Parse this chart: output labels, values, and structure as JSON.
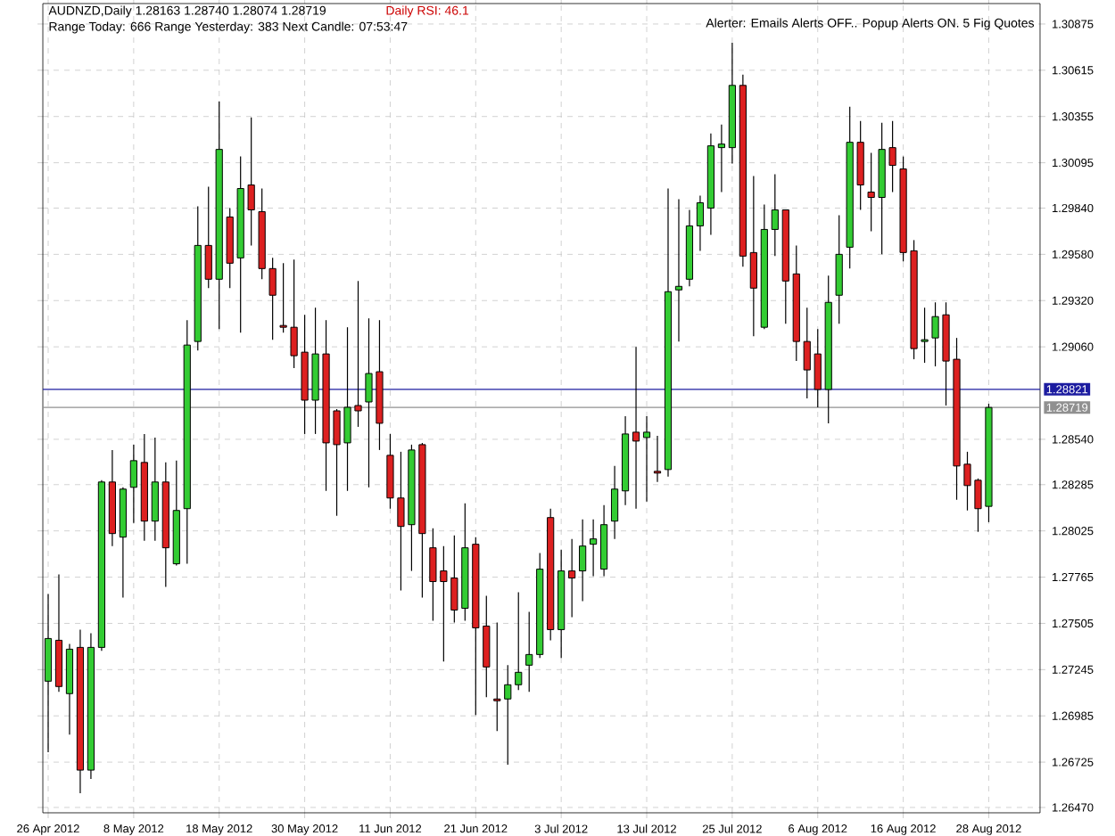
{
  "chart_data": {
    "type": "candlestick",
    "title": "AUDNZD,Daily  1.28163 1.28740 1.28074 1.28719",
    "subtitle": "Range Today: 666   Range Yesterday: 383   Next Candle: 07:53:47",
    "annotations": [
      "Daily RSI: 46.1",
      "Alerter:  Emails Alerts OFF.. Popup Alerts ON.  5 Fig Quotes"
    ],
    "categories": [
      "26 Apr 2012",
      null,
      null,
      null,
      null,
      null,
      null,
      null,
      "8 May 2012",
      null,
      null,
      null,
      null,
      null,
      null,
      null,
      "18 May 2012",
      null,
      null,
      null,
      null,
      null,
      null,
      null,
      "30 May 2012",
      null,
      null,
      null,
      null,
      null,
      null,
      null,
      "11 Jun 2012",
      null,
      null,
      null,
      null,
      null,
      null,
      null,
      "21 Jun 2012",
      null,
      null,
      null,
      null,
      null,
      null,
      null,
      "3 Jul 2012",
      null,
      null,
      null,
      null,
      null,
      null,
      null,
      "13 Jul 2012",
      null,
      null,
      null,
      null,
      null,
      null,
      null,
      "25 Jul 2012",
      null,
      null,
      null,
      null,
      null,
      null,
      null,
      "6 Aug 2012",
      null,
      null,
      null,
      null,
      null,
      null,
      null,
      "16 Aug 2012",
      null,
      null,
      null,
      null,
      null,
      null,
      null,
      "28 Aug 2012"
    ],
    "ohlc": [
      [
        1.2718,
        1.2767,
        1.2678,
        1.2742
      ],
      [
        1.2741,
        1.2778,
        1.2712,
        1.2715
      ],
      [
        1.2711,
        1.2739,
        1.2688,
        1.2736
      ],
      [
        1.2737,
        1.2747,
        1.2655,
        1.2668
      ],
      [
        1.2668,
        1.2745,
        1.2663,
        1.2737
      ],
      [
        1.2737,
        1.2831,
        1.2735,
        1.283
      ],
      [
        1.283,
        1.2848,
        1.2794,
        1.2801
      ],
      [
        1.2799,
        1.2827,
        1.2765,
        1.2826
      ],
      [
        1.2827,
        1.2851,
        1.2807,
        1.2842
      ],
      [
        1.2841,
        1.2857,
        1.2797,
        1.2808
      ],
      [
        1.2808,
        1.2855,
        1.2797,
        1.283
      ],
      [
        1.283,
        1.2841,
        1.2771,
        1.2793
      ],
      [
        1.2784,
        1.2842,
        1.2783,
        1.2814
      ],
      [
        1.2815,
        1.2921,
        1.2784,
        1.2907
      ],
      [
        1.2909,
        1.2985,
        1.2904,
        1.2963
      ],
      [
        1.2963,
        1.2996,
        1.2939,
        1.2944
      ],
      [
        1.2944,
        1.3044,
        1.2916,
        1.3017
      ],
      [
        1.2979,
        1.2984,
        1.2939,
        1.2953
      ],
      [
        1.2956,
        1.3013,
        1.2914,
        1.2995
      ],
      [
        1.2997,
        1.3035,
        1.2963,
        1.2983
      ],
      [
        1.2982,
        1.2995,
        1.2944,
        1.295
      ],
      [
        1.295,
        1.2956,
        1.291,
        1.2935
      ],
      [
        1.2918,
        1.2953,
        1.2914,
        1.2917
      ],
      [
        1.2917,
        1.2955,
        1.2894,
        1.2901
      ],
      [
        1.2903,
        1.2924,
        1.2857,
        1.2876
      ],
      [
        1.2876,
        1.2928,
        1.2857,
        1.2902
      ],
      [
        1.2902,
        1.2921,
        1.2825,
        1.2852
      ],
      [
        1.287,
        1.2871,
        1.2811,
        1.2851
      ],
      [
        1.2852,
        1.2917,
        1.2825,
        1.2872
      ],
      [
        1.2873,
        1.2943,
        1.2861,
        1.287
      ],
      [
        1.2875,
        1.2922,
        1.2827,
        1.2891
      ],
      [
        1.2892,
        1.2921,
        1.2848,
        1.2863
      ],
      [
        1.2845,
        1.2857,
        1.2815,
        1.2821
      ],
      [
        1.2821,
        1.2847,
        1.2769,
        1.2805
      ],
      [
        1.2806,
        1.2851,
        1.278,
        1.2848
      ],
      [
        1.2851,
        1.2852,
        1.2765,
        1.2801
      ],
      [
        1.2793,
        1.2804,
        1.2752,
        1.2774
      ],
      [
        1.278,
        1.2794,
        1.2729,
        1.2774
      ],
      [
        1.2776,
        1.28,
        1.2751,
        1.2758
      ],
      [
        1.2759,
        1.2818,
        1.2752,
        1.2793
      ],
      [
        1.2795,
        1.2799,
        1.2699,
        1.2748
      ],
      [
        1.2749,
        1.2766,
        1.2709,
        1.2726
      ],
      [
        1.2708,
        1.2751,
        1.269,
        1.2707
      ],
      [
        1.2708,
        1.2727,
        1.2671,
        1.2716
      ],
      [
        1.2716,
        1.2768,
        1.2713,
        1.2723
      ],
      [
        1.2727,
        1.2757,
        1.2712,
        1.2733
      ],
      [
        1.2733,
        1.279,
        1.2731,
        1.2781
      ],
      [
        1.281,
        1.2815,
        1.2741,
        1.2747
      ],
      [
        1.2747,
        1.2792,
        1.2731,
        1.278
      ],
      [
        1.278,
        1.2798,
        1.2754,
        1.2776
      ],
      [
        1.278,
        1.2809,
        1.2763,
        1.2794
      ],
      [
        1.2795,
        1.2809,
        1.2777,
        1.2798
      ],
      [
        1.2781,
        1.2817,
        1.2777,
        1.2806
      ],
      [
        1.2808,
        1.2839,
        1.2798,
        1.2826
      ],
      [
        1.2825,
        1.2867,
        1.2817,
        1.2857
      ],
      [
        1.2858,
        1.2906,
        1.2815,
        1.2853
      ],
      [
        1.2855,
        1.2867,
        1.2819,
        1.2858
      ],
      [
        1.2836,
        1.2856,
        1.283,
        1.2835
      ],
      [
        1.2837,
        1.2995,
        1.2833,
        1.2937
      ],
      [
        1.2938,
        1.2989,
        1.2909,
        1.294
      ],
      [
        1.2944,
        1.2983,
        1.294,
        1.2974
      ],
      [
        1.2974,
        1.2991,
        1.296,
        1.2987
      ],
      [
        1.2984,
        1.3026,
        1.2969,
        1.3019
      ],
      [
        1.3018,
        1.3031,
        1.2993,
        1.302
      ],
      [
        1.3018,
        1.3077,
        1.3009,
        1.3053
      ],
      [
        1.3053,
        1.3059,
        1.2951,
        1.2957
      ],
      [
        1.2959,
        1.3002,
        1.2912,
        1.2939
      ],
      [
        1.2917,
        1.2986,
        1.2916,
        1.2972
      ],
      [
        1.2972,
        1.3003,
        1.2957,
        1.2983
      ],
      [
        1.2983,
        1.2983,
        1.2919,
        1.2943
      ],
      [
        1.2947,
        1.2963,
        1.2898,
        1.2909
      ],
      [
        1.2909,
        1.2928,
        1.2877,
        1.2893
      ],
      [
        1.2902,
        1.2916,
        1.2872,
        1.2882
      ],
      [
        1.2882,
        1.2946,
        1.2863,
        1.2931
      ],
      [
        1.2935,
        1.298,
        1.2919,
        1.2958
      ],
      [
        1.2962,
        1.3041,
        1.295,
        1.3021
      ],
      [
        1.3021,
        1.3033,
        1.2983,
        1.2997
      ],
      [
        1.2993,
        1.3015,
        1.2971,
        1.299
      ],
      [
        1.299,
        1.3032,
        1.2958,
        1.3017
      ],
      [
        1.3018,
        1.3033,
        1.2993,
        1.3008
      ],
      [
        1.3006,
        1.3013,
        1.2954,
        1.2959
      ],
      [
        1.296,
        1.2966,
        1.2899,
        1.2905
      ],
      [
        1.2909,
        1.2928,
        1.2897,
        1.291
      ],
      [
        1.2911,
        1.2931,
        1.2895,
        1.2923
      ],
      [
        1.2924,
        1.2931,
        1.2873,
        1.2898
      ],
      [
        1.2899,
        1.2911,
        1.282,
        1.2839
      ],
      [
        1.284,
        1.2847,
        1.2814,
        1.2828
      ],
      [
        1.2831,
        1.2832,
        1.2802,
        1.2815
      ],
      [
        1.28163,
        1.2874,
        1.28074,
        1.28719
      ]
    ],
    "colors": [
      "#33cc33",
      "#dd2020",
      "#33cc33",
      "#dd2020",
      "#33cc33",
      "#33cc33",
      "#dd2020",
      "#33cc33",
      "#33cc33",
      "#dd2020",
      "#33cc33",
      "#dd2020",
      "#33cc33",
      "#33cc33",
      "#33cc33",
      "#dd2020",
      "#33cc33",
      "#dd2020",
      "#33cc33",
      "#dd2020",
      "#dd2020",
      "#dd2020",
      "#dd2020",
      "#dd2020",
      "#dd2020",
      "#33cc33",
      "#dd2020",
      "#dd2020",
      "#33cc33",
      "#dd2020",
      "#33cc33",
      "#dd2020",
      "#dd2020",
      "#dd2020",
      "#33cc33",
      "#dd2020",
      "#dd2020",
      "#dd2020",
      "#dd2020",
      "#33cc33",
      "#dd2020",
      "#dd2020",
      "#dd2020",
      "#33cc33",
      "#33cc33",
      "#33cc33",
      "#33cc33",
      "#dd2020",
      "#33cc33",
      "#dd2020",
      "#33cc33",
      "#33cc33",
      "#33cc33",
      "#33cc33",
      "#33cc33",
      "#dd2020",
      "#33cc33",
      "#dd2020",
      "#33cc33",
      "#33cc33",
      "#33cc33",
      "#33cc33",
      "#33cc33",
      "#33cc33",
      "#33cc33",
      "#dd2020",
      "#dd2020",
      "#33cc33",
      "#33cc33",
      "#dd2020",
      "#dd2020",
      "#dd2020",
      "#dd2020",
      "#33cc33",
      "#33cc33",
      "#33cc33",
      "#dd2020",
      "#dd2020",
      "#33cc33",
      "#dd2020",
      "#dd2020",
      "#dd2020",
      "#33cc33",
      "#33cc33",
      "#dd2020",
      "#dd2020",
      "#dd2020",
      "#dd2020",
      "#33cc33"
    ],
    "ylim": [
      1.2644,
      1.3099
    ],
    "yticks": [
      {
        "value": 1.30875,
        "label": "1.30875"
      },
      {
        "value": 1.30615,
        "label": "1.30615"
      },
      {
        "value": 1.30355,
        "label": "1.30355"
      },
      {
        "value": 1.30095,
        "label": "1.30095"
      },
      {
        "value": 1.2984,
        "label": "1.29840"
      },
      {
        "value": 1.2958,
        "label": "1.29580"
      },
      {
        "value": 1.2932,
        "label": "1.29320"
      },
      {
        "value": 1.2906,
        "label": "1.29060"
      },
      {
        "value": 1.2854,
        "label": "1.28540"
      },
      {
        "value": 1.28285,
        "label": "1.28285"
      },
      {
        "value": 1.28025,
        "label": "1.28025"
      },
      {
        "value": 1.27765,
        "label": "1.27765"
      },
      {
        "value": 1.27505,
        "label": "1.27505"
      },
      {
        "value": 1.27245,
        "label": "1.27245"
      },
      {
        "value": 1.26985,
        "label": "1.26985"
      },
      {
        "value": 1.26725,
        "label": "1.26725"
      },
      {
        "value": 1.2647,
        "label": "1.26470"
      }
    ],
    "grid": true,
    "ref_lines": [
      {
        "axis": "y",
        "value": 1.28821,
        "label": "1.28821",
        "color": "#1c1ca0"
      },
      {
        "axis": "y",
        "value": 1.28719,
        "label": "1.28719",
        "color": "#909090"
      }
    ]
  }
}
